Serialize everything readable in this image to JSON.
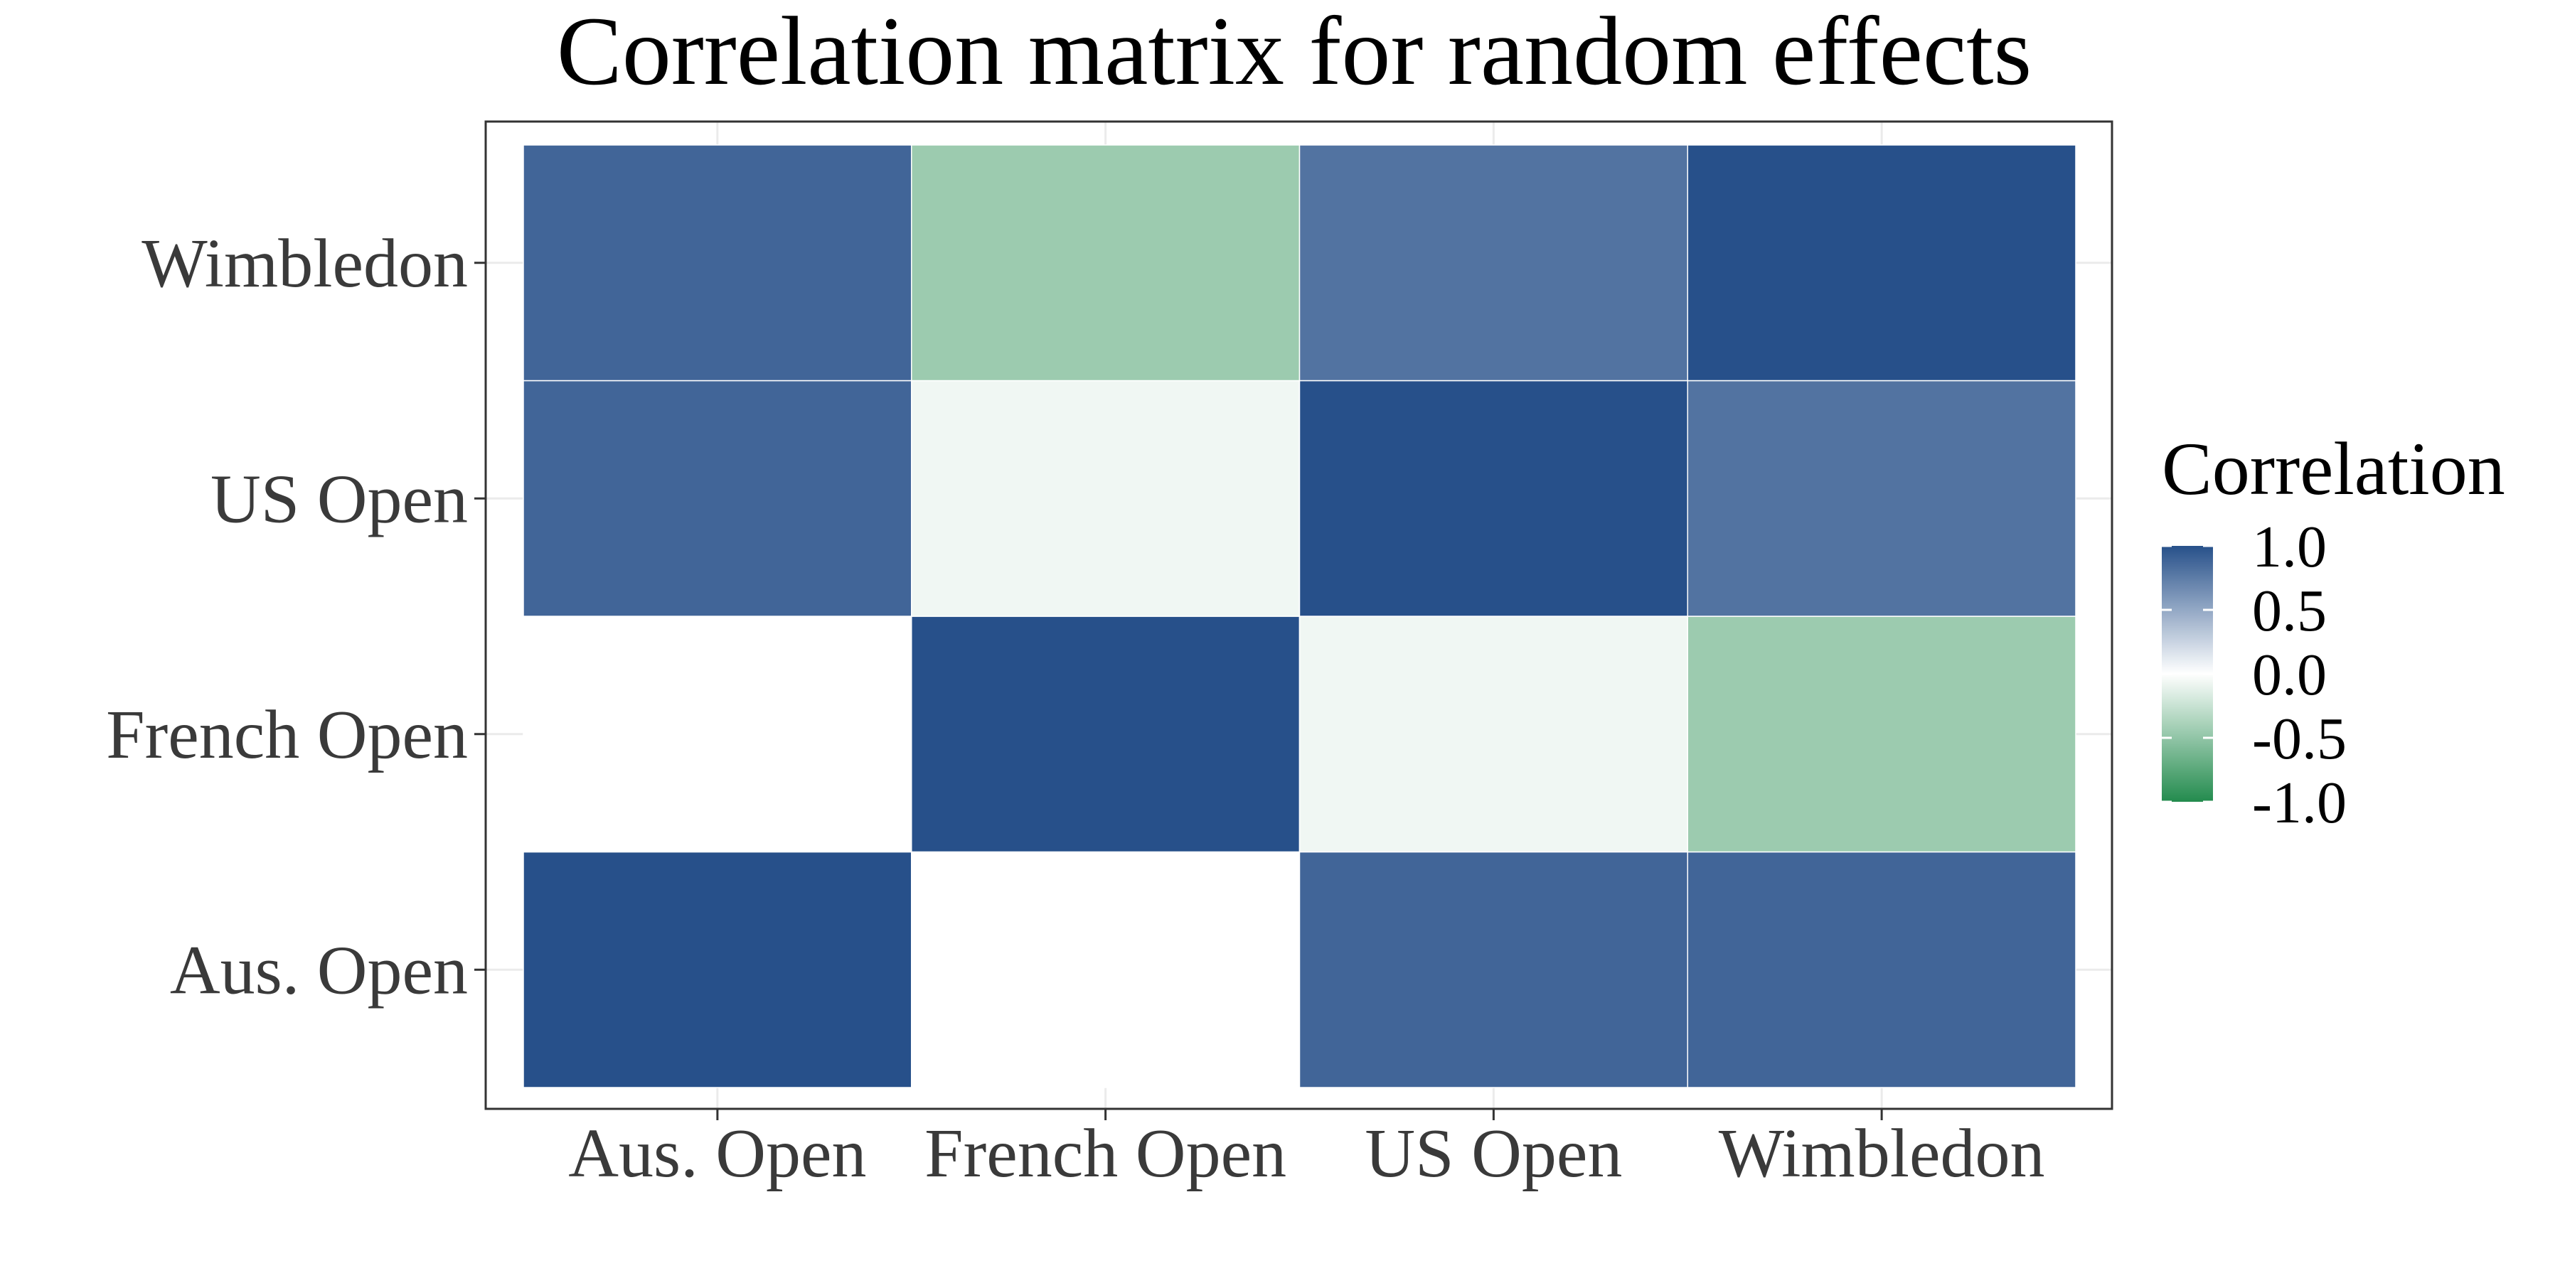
{
  "chart_data": {
    "type": "heatmap",
    "title": "Correlation matrix for random effects",
    "xlabel": "",
    "ylabel": "",
    "x_categories": [
      "Aus. Open",
      "French Open",
      "US Open",
      "Wimbledon"
    ],
    "y_categories": [
      "Aus. Open",
      "French Open",
      "US Open",
      "Wimbledon"
    ],
    "values": [
      [
        1.0,
        0.0,
        0.88,
        0.88
      ],
      [
        0.0,
        1.0,
        -0.07,
        -0.45
      ],
      [
        0.88,
        -0.07,
        1.0,
        0.8
      ],
      [
        0.88,
        -0.45,
        0.8,
        1.0
      ]
    ],
    "legend": {
      "title": "Correlation",
      "breaks": [
        1.0,
        0.5,
        0.0,
        -0.5,
        -1.0
      ],
      "labels": [
        "1.0",
        "0.5",
        "0.0",
        "-0.5",
        "-1.0"
      ],
      "position": "right"
    },
    "color_scale": {
      "low": "#238b4e",
      "mid": "#ffffff",
      "high": "#27508a",
      "limits": [
        -1,
        1
      ]
    },
    "grid": true
  }
}
